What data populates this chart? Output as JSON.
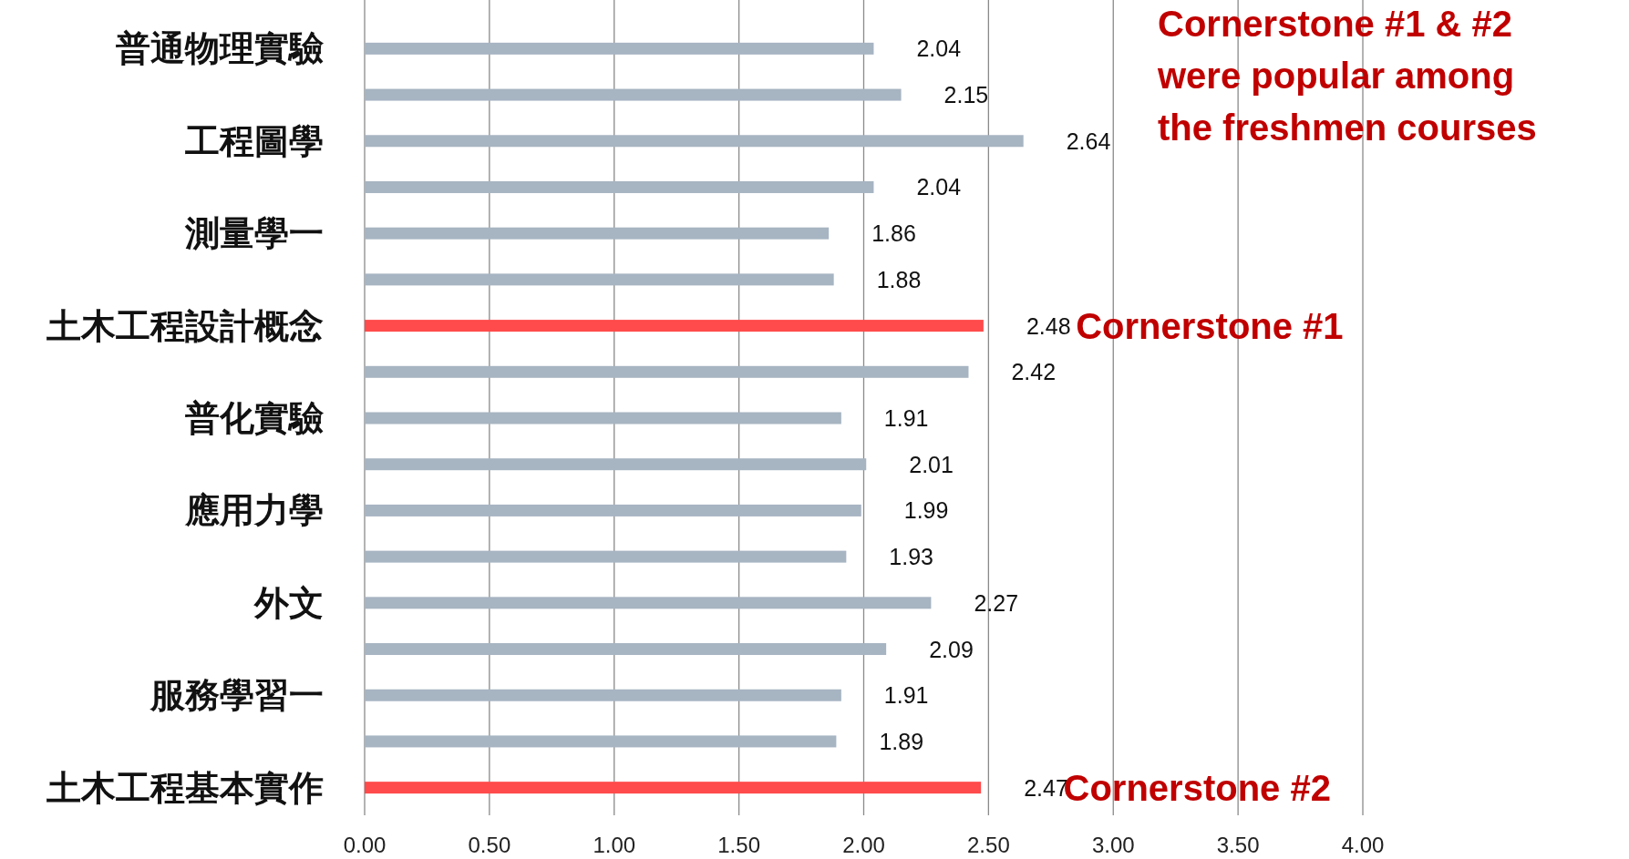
{
  "chart_data": {
    "type": "bar",
    "orientation": "horizontal",
    "categories": [
      "普通物理實驗",
      null,
      "工程圖學",
      null,
      "測量學一",
      null,
      "土木工程設計概念",
      null,
      "普化實驗",
      null,
      "應用力學",
      null,
      "外文",
      null,
      "服務學習一",
      null,
      "土木工程基本實作"
    ],
    "values": [
      2.04,
      2.15,
      2.64,
      2.04,
      1.86,
      1.88,
      2.48,
      2.42,
      1.91,
      2.01,
      1.99,
      1.93,
      2.27,
      2.09,
      1.91,
      1.89,
      2.47
    ],
    "colors": [
      "#a7b4c2",
      "#a7b4c2",
      "#a7b4c2",
      "#a7b4c2",
      "#a7b4c2",
      "#a7b4c2",
      "#ff4b4b",
      "#a7b4c2",
      "#a7b4c2",
      "#a7b4c2",
      "#a7b4c2",
      "#a7b4c2",
      "#a7b4c2",
      "#a7b4c2",
      "#a7b4c2",
      "#a7b4c2",
      "#ff4b4b"
    ],
    "data_labels": true,
    "xlim": [
      0,
      4
    ],
    "xticks": [
      {
        "value": 0,
        "label": "0.00"
      },
      {
        "value": 0.5,
        "label": "0.50"
      },
      {
        "value": 1,
        "label": "1.00"
      },
      {
        "value": 1.5,
        "label": "1.50"
      },
      {
        "value": 2,
        "label": "2.00"
      },
      {
        "value": 2.5,
        "label": "2.50"
      },
      {
        "value": 3,
        "label": "3.00"
      },
      {
        "value": 3.5,
        "label": "3.50"
      },
      {
        "value": 4,
        "label": "4.00"
      }
    ],
    "grid": "x",
    "annotations": [
      "Cornerstone #1 & #2 were popular among the freshmen courses",
      "Cornerstone #1",
      "Cornerstone #2"
    ]
  }
}
